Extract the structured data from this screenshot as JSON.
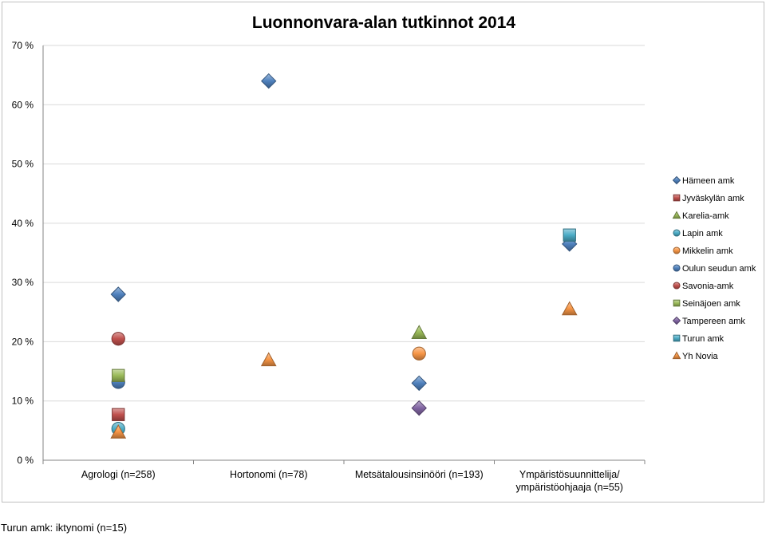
{
  "chart_data": {
    "type": "scatter",
    "title": "Luonnonvara-alan tutkinnot 2014",
    "xlabel": "",
    "ylabel": "",
    "categories": [
      [
        "Agrologi (n=258)"
      ],
      [
        "Hortonomi (n=78)"
      ],
      [
        "Metsätalousinsinööri (n=193)"
      ],
      [
        "Ympäristösuunnittelija/",
        "ympäristöohjaaja (n=55)"
      ]
    ],
    "ylim": [
      0,
      70
    ],
    "yticks": [
      0,
      10,
      20,
      30,
      40,
      50,
      60,
      70
    ],
    "ytick_labels": [
      "0 %",
      "10 %",
      "20 %",
      "30 %",
      "40 %",
      "50 %",
      "60 %",
      "70 %"
    ],
    "grid": "horizontal",
    "legend_position": "right",
    "series": [
      {
        "name": "Hämeen amk",
        "marker": "diamond",
        "color": "#4f81bd",
        "values": [
          28,
          64,
          13,
          36.5
        ]
      },
      {
        "name": "Jyväskylän amk",
        "marker": "square",
        "color": "#c0504d",
        "values": [
          7.7,
          null,
          null,
          null
        ]
      },
      {
        "name": "Karelia-amk",
        "marker": "triangle",
        "color": "#9bbb59",
        "values": [
          null,
          null,
          21.5,
          null
        ]
      },
      {
        "name": "Lapin amk",
        "marker": "circle",
        "color": "#4bacc6",
        "values": [
          5.3,
          null,
          null,
          null
        ]
      },
      {
        "name": "Mikkelin amk",
        "marker": "circle",
        "color": "#f79646",
        "values": [
          null,
          null,
          18,
          null
        ]
      },
      {
        "name": "Oulun seudun amk",
        "marker": "circle",
        "color": "#4f81bd",
        "values": [
          13.2,
          null,
          null,
          null
        ]
      },
      {
        "name": "Savonia-amk",
        "marker": "circle",
        "color": "#c0504d",
        "values": [
          20.5,
          null,
          null,
          null
        ]
      },
      {
        "name": "Seinäjoen amk",
        "marker": "square",
        "color": "#9bbb59",
        "values": [
          14.3,
          null,
          null,
          null
        ]
      },
      {
        "name": "Tampereen amk",
        "marker": "diamond",
        "color": "#8064a2",
        "values": [
          null,
          null,
          8.8,
          null
        ]
      },
      {
        "name": "Turun amk",
        "marker": "square",
        "color": "#4bacc6",
        "values": [
          null,
          null,
          null,
          38
        ]
      },
      {
        "name": "Yh Novia",
        "marker": "triangle",
        "color": "#f79646",
        "values": [
          4.7,
          16.9,
          null,
          25.5
        ]
      }
    ]
  },
  "footnote": "Turun amk: iktynomi (n=15)"
}
